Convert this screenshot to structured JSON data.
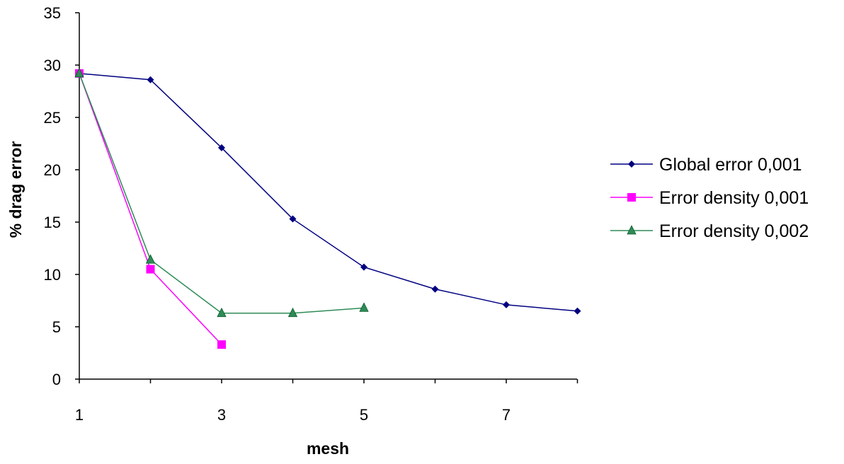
{
  "chart_data": {
    "type": "line",
    "title": "",
    "xlabel": "mesh",
    "ylabel": "% drag error",
    "xlim": [
      1,
      8
    ],
    "ylim": [
      0,
      35
    ],
    "x_ticks": [
      "1",
      "3",
      "5",
      "7"
    ],
    "y_ticks": [
      "0",
      "5",
      "10",
      "15",
      "20",
      "25",
      "30",
      "35"
    ],
    "grid": false,
    "legend_position": "right",
    "series": [
      {
        "name": "Global error 0,001",
        "color": "#000080",
        "marker": "diamond",
        "x": [
          1,
          2,
          3,
          4,
          5,
          6,
          7,
          8
        ],
        "y": [
          29.2,
          28.6,
          22.1,
          15.3,
          10.7,
          8.6,
          7.1,
          6.5
        ]
      },
      {
        "name": "Error density 0,001",
        "color": "#ff00ff",
        "marker": "square",
        "x": [
          1,
          2,
          3
        ],
        "y": [
          29.2,
          10.5,
          3.3
        ]
      },
      {
        "name": "Error density 0,002",
        "color": "#2e8b57",
        "marker": "triangle",
        "x": [
          1,
          2,
          3,
          4,
          5
        ],
        "y": [
          29.2,
          11.4,
          6.3,
          6.3,
          6.8
        ]
      }
    ]
  }
}
